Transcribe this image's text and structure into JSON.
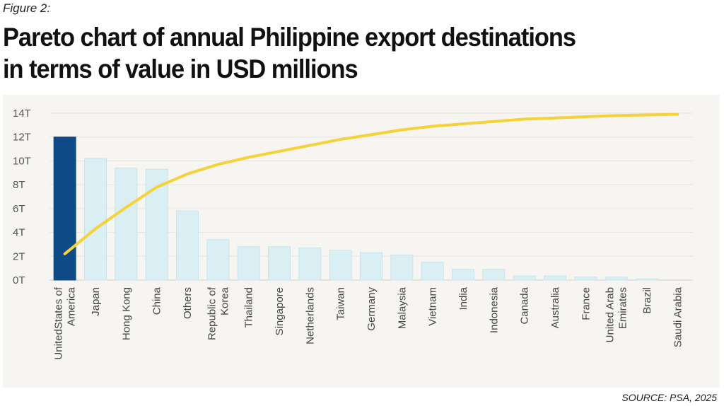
{
  "figure_label": "Figure 2:",
  "title_lines": [
    "Pareto chart of annual Philippine export destinations",
    "in terms of value in USD millions"
  ],
  "source": "SOURCE: PSA, 2025",
  "colors": {
    "highlight_bar": "#0e4a86",
    "bar": "#daeff3",
    "bar_edge": "#c9e4ea",
    "cumulative_line": "#f4d23a",
    "panel_bg": "#f6f5f1"
  },
  "chart_data": {
    "type": "bar",
    "categories": [
      "UnitedStates of America",
      "Japan",
      "Hong Kong",
      "China",
      "Others",
      "Republic of Korea",
      "Thailand",
      "Singapore",
      "Netherlands",
      "Taiwan",
      "Germany",
      "Malaysia",
      "Vietnam",
      "India",
      "Indonesia",
      "Canada",
      "Australia",
      "France",
      "United Arab Emirates",
      "Brazil",
      "Saudi Arabia"
    ],
    "category_label_lines": [
      [
        "UnitedStates of",
        "America"
      ],
      [
        "Japan"
      ],
      [
        "Hong Kong"
      ],
      [
        "China"
      ],
      [
        "Others"
      ],
      [
        "Republic of",
        "Korea"
      ],
      [
        "Thailand"
      ],
      [
        "Singapore"
      ],
      [
        "Netherlands"
      ],
      [
        "Taiwan"
      ],
      [
        "Germany"
      ],
      [
        "Malaysia"
      ],
      [
        "Vietnam"
      ],
      [
        "India"
      ],
      [
        "Indonesia"
      ],
      [
        "Canada"
      ],
      [
        "Australia"
      ],
      [
        "France"
      ],
      [
        "United Arab",
        "Emirates"
      ],
      [
        "Brazil"
      ],
      [
        "Saudi Arabia"
      ]
    ],
    "bar_slots": [
      0,
      1,
      2,
      3,
      4,
      5,
      6,
      7,
      8,
      9,
      10,
      11,
      12,
      13,
      14,
      15,
      16,
      17,
      18,
      19,
      null
    ],
    "label_slots": [
      0,
      1,
      2,
      3,
      4,
      5,
      6,
      7,
      8,
      9,
      10,
      11,
      12,
      13,
      14,
      15,
      16,
      17,
      18,
      19,
      20
    ],
    "values": [
      12.0,
      10.2,
      9.4,
      9.3,
      5.8,
      3.4,
      2.8,
      2.8,
      2.7,
      2.5,
      2.3,
      2.1,
      1.5,
      0.9,
      0.9,
      0.35,
      0.35,
      0.25,
      0.25,
      0.1,
      null
    ],
    "highlight_index": 0,
    "cumulative_line": {
      "x_slots": [
        0,
        1,
        2,
        3,
        4,
        5,
        6,
        7,
        8,
        9,
        10,
        11,
        12,
        13,
        14,
        15,
        16,
        17,
        18,
        19,
        20
      ],
      "values": [
        2.2,
        4.3,
        6.1,
        7.8,
        8.9,
        9.7,
        10.3,
        10.8,
        11.3,
        11.8,
        12.2,
        12.6,
        12.9,
        13.1,
        13.3,
        13.5,
        13.6,
        13.7,
        13.8,
        13.85,
        13.9
      ]
    },
    "y_ticks": [
      0,
      2,
      4,
      6,
      8,
      10,
      12,
      14
    ],
    "y_tick_labels": [
      "0T",
      "2T",
      "4T",
      "6T",
      "8T",
      "10T",
      "12T",
      "14T"
    ],
    "ylim": [
      0,
      14
    ],
    "grid": true,
    "xlabel": "",
    "ylabel": ""
  }
}
